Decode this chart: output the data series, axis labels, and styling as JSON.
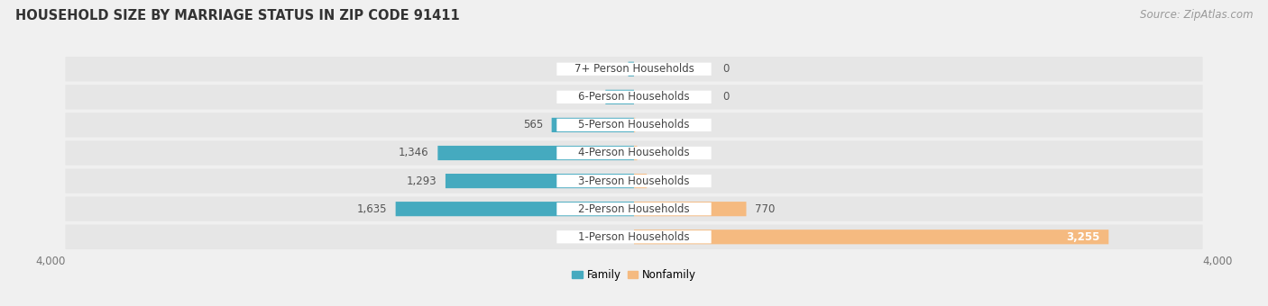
{
  "title": "HOUSEHOLD SIZE BY MARRIAGE STATUS IN ZIP CODE 91411",
  "source": "Source: ZipAtlas.com",
  "categories": [
    "7+ Person Households",
    "6-Person Households",
    "5-Person Households",
    "4-Person Households",
    "3-Person Households",
    "2-Person Households",
    "1-Person Households"
  ],
  "family_values": [
    40,
    196,
    565,
    1346,
    1293,
    1635,
    0
  ],
  "nonfamily_values": [
    0,
    0,
    8,
    22,
    88,
    770,
    3255
  ],
  "family_color": "#45AABF",
  "nonfamily_color": "#F5BA80",
  "axis_max": 4000,
  "bg_color": "#f0f0f0",
  "row_bg_color": "#e6e6e6",
  "title_fontsize": 10.5,
  "source_fontsize": 8.5,
  "label_fontsize": 8.5,
  "tick_fontsize": 8.5,
  "value_label_color": "#555555",
  "cat_label_color": "#444444",
  "label_box_color": "#ffffff"
}
